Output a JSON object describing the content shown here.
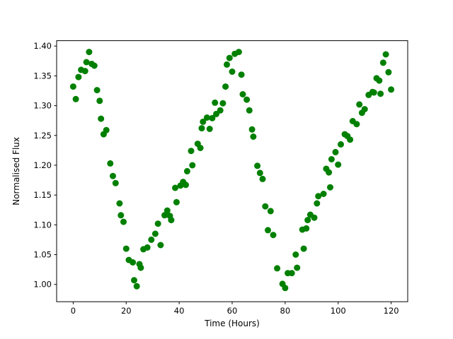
{
  "figure": {
    "background": "#ffffff",
    "frame_color": "#000000"
  },
  "chart_data": {
    "type": "scatter",
    "title": "",
    "xlabel": "Time (Hours)",
    "ylabel": "Normalised Flux",
    "legend": null,
    "grid": false,
    "marker": "circle",
    "marker_color": "#008000",
    "xlim": [
      -6.25,
      126.25
    ],
    "ylim": [
      0.971,
      1.409
    ],
    "xticks": [
      0,
      20,
      40,
      60,
      80,
      100,
      120
    ],
    "yticks": [
      1.0,
      1.05,
      1.1,
      1.15,
      1.2,
      1.25,
      1.3,
      1.35,
      1.4
    ],
    "x_units": "hours",
    "y_units": "normalised flux",
    "points": [
      [
        0,
        1.332
      ],
      [
        1,
        1.311
      ],
      [
        2,
        1.348
      ],
      [
        3,
        1.36
      ],
      [
        4.5,
        1.358
      ],
      [
        5,
        1.373
      ],
      [
        6,
        1.39
      ],
      [
        7,
        1.37
      ],
      [
        8,
        1.367
      ],
      [
        9,
        1.326
      ],
      [
        10,
        1.308
      ],
      [
        10.5,
        1.278
      ],
      [
        11.5,
        1.252
      ],
      [
        12.5,
        1.259
      ],
      [
        14,
        1.203
      ],
      [
        15,
        1.182
      ],
      [
        16,
        1.17
      ],
      [
        17.5,
        1.136
      ],
      [
        18,
        1.116
      ],
      [
        19,
        1.105
      ],
      [
        20,
        1.06
      ],
      [
        21,
        1.041
      ],
      [
        22.5,
        1.037
      ],
      [
        23,
        1.007
      ],
      [
        24,
        0.997
      ],
      [
        25,
        1.034
      ],
      [
        25.5,
        1.028
      ],
      [
        26.5,
        1.059
      ],
      [
        28,
        1.062
      ],
      [
        29.5,
        1.075
      ],
      [
        31,
        1.085
      ],
      [
        32,
        1.102
      ],
      [
        33,
        1.066
      ],
      [
        34.5,
        1.116
      ],
      [
        35.5,
        1.124
      ],
      [
        36.5,
        1.115
      ],
      [
        37,
        1.108
      ],
      [
        38.5,
        1.162
      ],
      [
        39,
        1.138
      ],
      [
        40.5,
        1.166
      ],
      [
        41.5,
        1.172
      ],
      [
        42.5,
        1.167
      ],
      [
        43,
        1.19
      ],
      [
        44.5,
        1.224
      ],
      [
        45,
        1.2
      ],
      [
        47,
        1.236
      ],
      [
        48,
        1.229
      ],
      [
        48.5,
        1.262
      ],
      [
        49,
        1.273
      ],
      [
        50.5,
        1.28
      ],
      [
        51.5,
        1.261
      ],
      [
        52.5,
        1.279
      ],
      [
        53.5,
        1.305
      ],
      [
        54,
        1.286
      ],
      [
        55.5,
        1.292
      ],
      [
        56.5,
        1.304
      ],
      [
        57.5,
        1.332
      ],
      [
        58,
        1.369
      ],
      [
        59,
        1.38
      ],
      [
        60,
        1.357
      ],
      [
        61,
        1.387
      ],
      [
        62.5,
        1.39
      ],
      [
        63.5,
        1.352
      ],
      [
        64,
        1.319
      ],
      [
        65.5,
        1.31
      ],
      [
        66.5,
        1.292
      ],
      [
        67.5,
        1.26
      ],
      [
        68,
        1.248
      ],
      [
        69.5,
        1.199
      ],
      [
        70.5,
        1.187
      ],
      [
        71.5,
        1.177
      ],
      [
        72.5,
        1.131
      ],
      [
        73.5,
        1.091
      ],
      [
        74.5,
        1.123
      ],
      [
        75.5,
        1.083
      ],
      [
        77,
        1.027
      ],
      [
        79,
        1.001
      ],
      [
        80,
        0.994
      ],
      [
        81,
        1.019
      ],
      [
        82.5,
        1.019
      ],
      [
        84,
        1.05
      ],
      [
        84.5,
        1.028
      ],
      [
        86.5,
        1.092
      ],
      [
        87,
        1.06
      ],
      [
        88,
        1.094
      ],
      [
        88.5,
        1.108
      ],
      [
        89.5,
        1.117
      ],
      [
        91,
        1.112
      ],
      [
        92,
        1.136
      ],
      [
        92.5,
        1.148
      ],
      [
        94.5,
        1.152
      ],
      [
        95.5,
        1.194
      ],
      [
        96.5,
        1.188
      ],
      [
        97,
        1.163
      ],
      [
        97.5,
        1.21
      ],
      [
        99,
        1.222
      ],
      [
        100,
        1.201
      ],
      [
        101,
        1.235
      ],
      [
        102.5,
        1.252
      ],
      [
        103.5,
        1.249
      ],
      [
        104.5,
        1.243
      ],
      [
        105.5,
        1.274
      ],
      [
        107,
        1.269
      ],
      [
        108,
        1.302
      ],
      [
        109,
        1.288
      ],
      [
        110,
        1.294
      ],
      [
        111.5,
        1.318
      ],
      [
        113,
        1.323
      ],
      [
        113.5,
        1.322
      ],
      [
        114.5,
        1.346
      ],
      [
        115.5,
        1.342
      ],
      [
        116,
        1.32
      ],
      [
        117,
        1.372
      ],
      [
        118,
        1.386
      ],
      [
        119,
        1.356
      ],
      [
        120,
        1.327
      ]
    ]
  }
}
